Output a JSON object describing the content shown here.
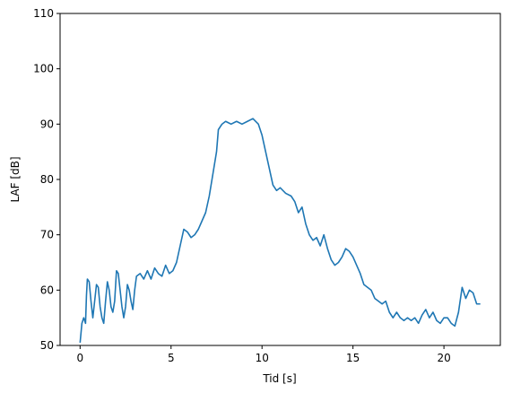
{
  "chart_data": {
    "type": "line",
    "xlabel": "Tid [s]",
    "ylabel": "LAF [dB]",
    "color": "#1f77b4",
    "x": [
      0.0,
      0.1,
      0.2,
      0.3,
      0.35,
      0.4,
      0.5,
      0.6,
      0.7,
      0.8,
      0.9,
      1.0,
      1.1,
      1.2,
      1.3,
      1.4,
      1.5,
      1.6,
      1.7,
      1.8,
      1.9,
      2.0,
      2.1,
      2.2,
      2.3,
      2.4,
      2.5,
      2.6,
      2.7,
      2.8,
      2.9,
      3.0,
      3.1,
      3.3,
      3.5,
      3.7,
      3.9,
      4.1,
      4.3,
      4.5,
      4.7,
      4.9,
      5.1,
      5.3,
      5.5,
      5.7,
      5.9,
      6.1,
      6.3,
      6.5,
      6.7,
      6.9,
      7.1,
      7.3,
      7.5,
      7.6,
      7.8,
      8.0,
      8.3,
      8.6,
      8.9,
      9.2,
      9.5,
      9.8,
      10.0,
      10.2,
      10.4,
      10.6,
      10.8,
      11.0,
      11.3,
      11.6,
      11.8,
      12.0,
      12.2,
      12.4,
      12.6,
      12.8,
      13.0,
      13.2,
      13.4,
      13.6,
      13.8,
      14.0,
      14.2,
      14.4,
      14.6,
      14.8,
      15.0,
      15.2,
      15.4,
      15.6,
      15.8,
      16.0,
      16.2,
      16.4,
      16.6,
      16.8,
      17.0,
      17.2,
      17.4,
      17.6,
      17.8,
      18.0,
      18.2,
      18.4,
      18.6,
      18.8,
      19.0,
      19.2,
      19.4,
      19.6,
      19.8,
      20.0,
      20.2,
      20.4,
      20.6,
      20.8,
      21.0,
      21.2,
      21.4,
      21.6,
      21.8,
      22.0
    ],
    "values": [
      50.5,
      54,
      55,
      54,
      59,
      62,
      61.5,
      58,
      55,
      58,
      61,
      60.5,
      57,
      55,
      54,
      58,
      61.5,
      60,
      57,
      56,
      58,
      63.5,
      63,
      60,
      57,
      55,
      57,
      61,
      60,
      58,
      56.5,
      60,
      62.5,
      63,
      62,
      63.5,
      62,
      64,
      63,
      62.5,
      64.5,
      63,
      63.5,
      65,
      68,
      71,
      70.5,
      69.5,
      70,
      71,
      72.5,
      74,
      77,
      81,
      85,
      89,
      90,
      90.5,
      90,
      90.5,
      90,
      90.5,
      91,
      90,
      88,
      85,
      82,
      79,
      78,
      78.5,
      77.5,
      77,
      76,
      74,
      75,
      72,
      70,
      69,
      69.5,
      68,
      70,
      67.5,
      65.5,
      64.5,
      65,
      66,
      67.5,
      67,
      66,
      64.5,
      63,
      61,
      60.5,
      60,
      58.5,
      58,
      57.5,
      58,
      56,
      55,
      56,
      55,
      54.5,
      55,
      54.5,
      55,
      54,
      55.5,
      56.5,
      55,
      56,
      54.5,
      54,
      55,
      55,
      54,
      53.5,
      56,
      60.5,
      58.5,
      60,
      59.5,
      57.5,
      57.5
    ],
    "xlim": [
      -1.1,
      23.1
    ],
    "xticks": [
      0,
      5,
      10,
      15,
      20
    ],
    "ylim": [
      50,
      110
    ],
    "yticks": [
      50,
      60,
      70,
      80,
      90,
      100,
      110
    ]
  }
}
